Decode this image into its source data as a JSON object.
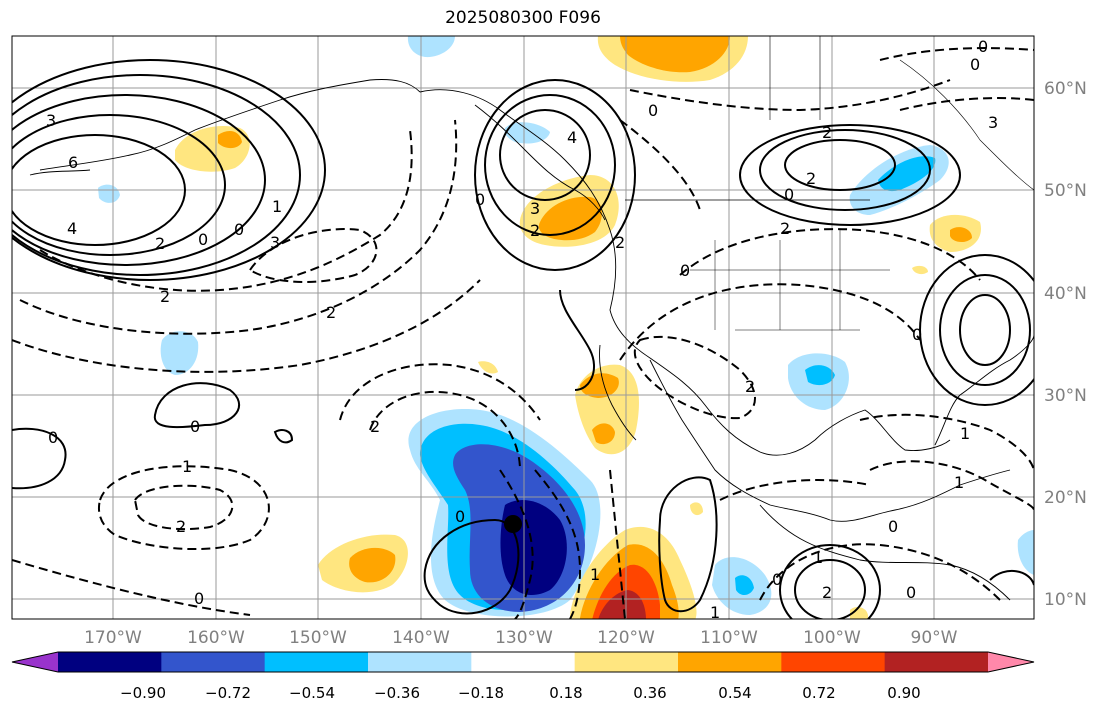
{
  "title": "2025080300 F096",
  "axes": {
    "lon_labels": [
      "170°W",
      "160°W",
      "150°W",
      "140°W",
      "130°W",
      "120°W",
      "110°W",
      "100°W",
      "90°W"
    ],
    "lat_labels": [
      "60°N",
      "50°N",
      "40°N",
      "30°N",
      "20°N",
      "10°N"
    ]
  },
  "colorbar": {
    "ticks": [
      "−0.90",
      "−0.72",
      "−0.54",
      "−0.36",
      "−0.18",
      "0.18",
      "0.36",
      "0.54",
      "0.72",
      "0.90"
    ],
    "colors": [
      "#9933cc",
      "#000080",
      "#3355cc",
      "#00bfff",
      "#aee3ff",
      "#ffffff",
      "#ffe680",
      "#ffa500",
      "#ff4500",
      "#b22222",
      "#ff88aa"
    ]
  },
  "contour_labels": [
    {
      "text": "3"
    },
    {
      "text": "6"
    },
    {
      "text": "4"
    },
    {
      "text": "2"
    },
    {
      "text": "0"
    },
    {
      "text": "0"
    },
    {
      "text": "1"
    },
    {
      "text": "3"
    },
    {
      "text": "2"
    },
    {
      "text": "2"
    },
    {
      "text": "4"
    },
    {
      "text": "3"
    },
    {
      "text": "2"
    },
    {
      "text": "0"
    },
    {
      "text": "0"
    },
    {
      "text": "2"
    },
    {
      "text": "0"
    },
    {
      "text": "2"
    },
    {
      "text": "2"
    },
    {
      "text": "0"
    },
    {
      "text": "0"
    },
    {
      "text": "3"
    },
    {
      "text": "0"
    },
    {
      "text": "2"
    },
    {
      "text": "0"
    },
    {
      "text": "2"
    },
    {
      "text": "1"
    },
    {
      "text": "0"
    },
    {
      "text": "0"
    },
    {
      "text": "1"
    },
    {
      "text": "2"
    },
    {
      "text": "0"
    },
    {
      "text": "0"
    },
    {
      "text": "2"
    },
    {
      "text": "1"
    },
    {
      "text": "1"
    },
    {
      "text": "0"
    },
    {
      "text": "0"
    },
    {
      "text": "1"
    },
    {
      "text": "1"
    },
    {
      "text": "2"
    },
    {
      "text": "0"
    }
  ]
}
